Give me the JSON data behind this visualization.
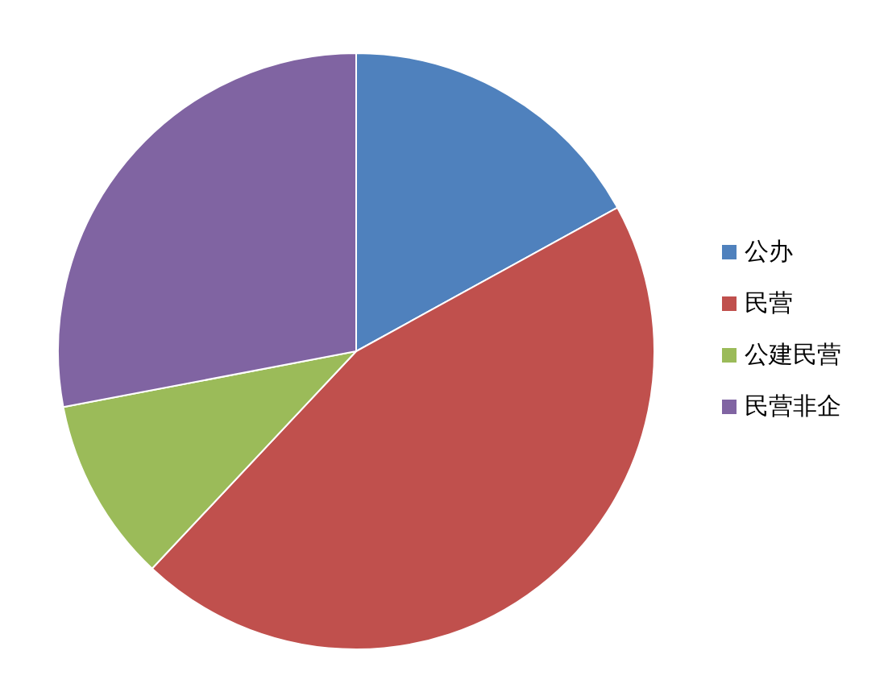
{
  "chart_data": {
    "type": "pie",
    "categories": [
      "公办",
      "民营",
      "公建民营",
      "民营非企"
    ],
    "values": [
      17,
      45,
      10,
      28
    ],
    "colors": [
      "#4f81bd",
      "#c0504d",
      "#9bbb59",
      "#8064a2"
    ],
    "legend": "right"
  }
}
